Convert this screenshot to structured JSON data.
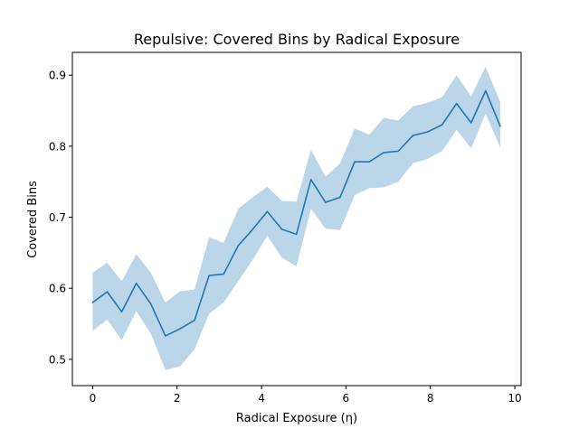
{
  "chart_data": {
    "type": "line",
    "title": "Repulsive: Covered Bins by Radical Exposure",
    "xlabel": "Radical Exposure (η)",
    "ylabel": "Covered Bins",
    "xlim": [
      -0.48,
      10.15
    ],
    "ylim": [
      0.463,
      0.932
    ],
    "grid": false,
    "legend": "none",
    "x_ticks": [
      0,
      2,
      4,
      6,
      8,
      10
    ],
    "y_ticks": [
      0.5,
      0.6,
      0.7,
      0.8,
      0.9
    ],
    "x_tick_labels": [
      "0",
      "2",
      "4",
      "6",
      "8",
      "10"
    ],
    "y_tick_labels": [
      "0.5",
      "0.6",
      "0.7",
      "0.8",
      "0.9"
    ],
    "series": [
      {
        "color": "#1f77b4",
        "band_color": "#1f77b4",
        "x": [
          0.0,
          0.345,
          0.69,
          1.034,
          1.379,
          1.724,
          2.069,
          2.414,
          2.759,
          3.103,
          3.448,
          3.793,
          4.138,
          4.483,
          4.828,
          5.172,
          5.517,
          5.862,
          6.207,
          6.552,
          6.897,
          7.241,
          7.586,
          7.931,
          8.276,
          8.621,
          8.966,
          9.31,
          9.655
        ],
        "y": [
          0.58,
          0.595,
          0.567,
          0.607,
          0.578,
          0.533,
          0.543,
          0.555,
          0.618,
          0.62,
          0.66,
          0.683,
          0.708,
          0.683,
          0.676,
          0.753,
          0.721,
          0.728,
          0.778,
          0.778,
          0.791,
          0.793,
          0.815,
          0.82,
          0.83,
          0.86,
          0.833,
          0.878,
          0.828
        ],
        "lower": [
          0.54,
          0.556,
          0.527,
          0.568,
          0.536,
          0.485,
          0.49,
          0.514,
          0.564,
          0.58,
          0.61,
          0.64,
          0.674,
          0.643,
          0.631,
          0.712,
          0.684,
          0.682,
          0.731,
          0.741,
          0.742,
          0.75,
          0.776,
          0.782,
          0.793,
          0.823,
          0.797,
          0.846,
          0.798
        ],
        "upper": [
          0.622,
          0.636,
          0.61,
          0.648,
          0.622,
          0.58,
          0.596,
          0.598,
          0.672,
          0.664,
          0.712,
          0.728,
          0.743,
          0.723,
          0.722,
          0.795,
          0.757,
          0.776,
          0.825,
          0.816,
          0.84,
          0.836,
          0.856,
          0.861,
          0.869,
          0.9,
          0.87,
          0.912,
          0.862
        ]
      }
    ]
  }
}
